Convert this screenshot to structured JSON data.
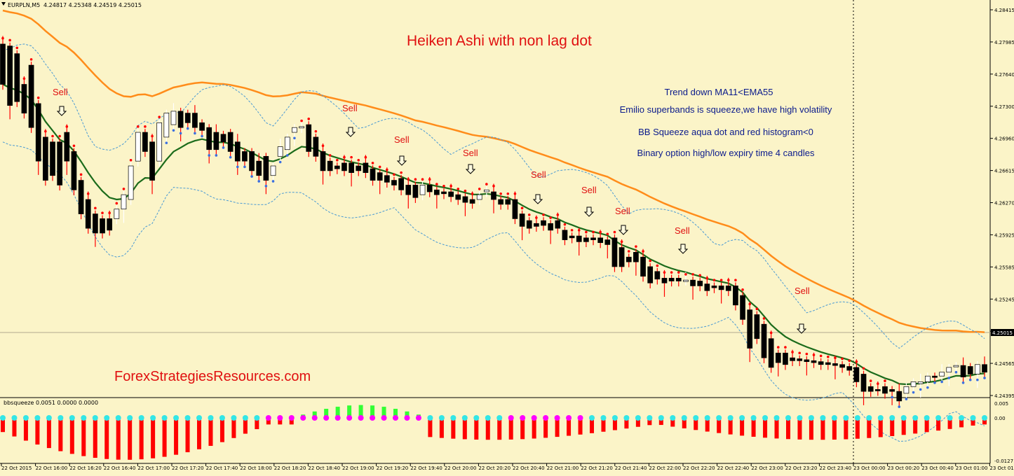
{
  "header": {
    "symbol_label": "EURPLN,M5",
    "ohlc": "4.24817 4.25348 4.24519 4.25015"
  },
  "annotations": {
    "title": "Heiken Ashi with non lag dot",
    "info_lines": [
      "Trend down MA11<EMA55",
      "Emilio superbands is squeeze,we have high volatility",
      "BB Squeeze aqua dot and red histogram<0",
      "Binary option high/low expiry time 4 candles"
    ],
    "website": "ForexStrategiesResources.com",
    "sell_label": "Sell"
  },
  "subwindow": {
    "label": "bbsqueeze 0.0051 0.0000 0.0000"
  },
  "colors": {
    "background": "#fbf4c8",
    "bear_candle": "#000000",
    "bull_candle": "#ffffff",
    "bear_wick": "#ff0000",
    "ema55": "#ff8c1a",
    "ma11": "#1b6b1b",
    "bands": "#4a9ad4",
    "dot_red": "#ff0000",
    "dot_blue": "#3a6fe0",
    "hist_red": "#ff0000",
    "hist_green": "#33ff33",
    "dot_aqua": "#33e6e6",
    "dot_magenta": "#ff00ff",
    "text_red": "#e01010",
    "text_navy": "#0a1a8c"
  },
  "chart_data": [
    {
      "type": "candlestick",
      "name": "EURPLN,M5 Heiken Ashi",
      "ylim": [
        4.2435,
        4.2845
      ],
      "y_ticks": [
        "4.28415",
        "4.27985",
        "4.27640",
        "4.27300",
        "4.26960",
        "4.26615",
        "4.26270",
        "4.25925",
        "4.25585",
        "4.25245",
        "4.24905",
        "4.24565",
        "4.24395"
      ],
      "current_price": "4.25015",
      "x_ticks": [
        "22 Oct 2015",
        "22 Oct 16:00",
        "22 Oct 16:20",
        "22 Oct 16:40",
        "22 Oct 17:00",
        "22 Oct 17:20",
        "22 Oct 17:40",
        "22 Oct 18:00",
        "22 Oct 18:20",
        "22 Oct 18:40",
        "22 Oct 19:00",
        "22 Oct 19:20",
        "22 Oct 19:40",
        "22 Oct 20:00",
        "22 Oct 20:20",
        "22 Oct 20:40",
        "22 Oct 21:00",
        "22 Oct 21:20",
        "22 Oct 21:40",
        "22 Oct 22:00",
        "22 Oct 22:20",
        "22 Oct 22:40",
        "22 Oct 23:00",
        "22 Oct 23:20",
        "22 Oct 23:40",
        "23 Oct 00:00",
        "23 Oct 00:20",
        "23 Oct 00:40",
        "23 Oct 01:00",
        "23 Oct 01:2"
      ],
      "candles": [
        [
          4.2802,
          4.276
        ],
        [
          4.28,
          4.2738
        ],
        [
          4.2792,
          4.2742
        ],
        [
          4.276,
          4.273
        ],
        [
          4.278,
          4.2715
        ],
        [
          4.274,
          4.268
        ],
        [
          4.2705,
          4.266
        ],
        [
          4.27,
          4.2665
        ],
        [
          4.27,
          4.2655
        ],
        [
          4.271,
          4.268
        ],
        [
          4.269,
          4.265
        ],
        [
          4.266,
          4.2625
        ],
        [
          4.264,
          4.261
        ],
        [
          4.2625,
          4.2605
        ],
        [
          4.262,
          4.2605
        ],
        [
          4.262,
          4.2608
        ],
        [
          4.262,
          4.263
        ],
        [
          4.263,
          4.2645
        ],
        [
          4.264,
          4.2675
        ],
        [
          4.268,
          4.271
        ],
        [
          4.271,
          4.269
        ],
        [
          4.27,
          4.266
        ],
        [
          4.268,
          4.272
        ],
        [
          4.2705,
          4.273
        ],
        [
          4.2718,
          4.2732
        ],
        [
          4.2732,
          4.2715
        ],
        [
          4.273,
          4.272
        ],
        [
          4.273,
          4.2715
        ],
        [
          4.272,
          4.2712
        ],
        [
          4.2715,
          4.2692
        ],
        [
          4.271,
          4.2692
        ],
        [
          4.2708,
          4.27
        ],
        [
          4.271,
          4.269
        ],
        [
          4.27,
          4.268
        ],
        [
          4.269,
          4.268
        ],
        [
          4.269,
          4.267
        ],
        [
          4.268,
          4.2665
        ],
        [
          4.2685,
          4.266
        ],
        [
          4.2665,
          4.2675
        ],
        [
          4.2685,
          4.2695
        ],
        [
          4.2692,
          4.2705
        ],
        [
          4.271,
          4.2715
        ],
        [
          4.2715,
          4.2716
        ],
        [
          4.2718,
          4.269
        ],
        [
          4.2705,
          4.2685
        ],
        [
          4.269,
          4.267
        ],
        [
          4.268,
          4.267
        ],
        [
          4.2675,
          4.2672
        ],
        [
          4.2678,
          4.267
        ],
        [
          4.2678,
          4.2668
        ],
        [
          4.2675,
          4.267
        ],
        [
          4.2678,
          4.2668
        ],
        [
          4.2672,
          4.266
        ],
        [
          4.2668,
          4.266
        ],
        [
          4.2665,
          4.2658
        ],
        [
          4.266,
          4.2655
        ],
        [
          4.2662,
          4.265
        ],
        [
          4.2655,
          4.2645
        ],
        [
          4.2655,
          4.2642
        ],
        [
          4.2645,
          4.2655
        ],
        [
          4.2655,
          4.2648
        ],
        [
          4.265,
          4.2645
        ],
        [
          4.2648,
          4.2646
        ],
        [
          4.2648,
          4.2643
        ],
        [
          4.2645,
          4.264
        ],
        [
          4.2643,
          4.2637
        ],
        [
          4.264,
          4.2636
        ],
        [
          4.264,
          4.2645
        ],
        [
          4.2648,
          4.265
        ],
        [
          4.2648,
          4.264
        ],
        [
          4.264,
          4.2635
        ],
        [
          4.264,
          4.2635
        ],
        [
          4.264,
          4.262
        ],
        [
          4.2625,
          4.2612
        ],
        [
          4.2618,
          4.261
        ],
        [
          4.2615,
          4.2612
        ],
        [
          4.2618,
          4.2613
        ],
        [
          4.2615,
          4.2608
        ],
        [
          4.2618,
          4.261
        ],
        [
          4.2608,
          4.2598
        ],
        [
          4.2602,
          4.26
        ],
        [
          4.2602,
          4.2596
        ],
        [
          4.26,
          4.2596
        ],
        [
          4.26,
          4.2598
        ],
        [
          4.26,
          4.2595
        ],
        [
          4.2598,
          4.2593
        ],
        [
          4.26,
          4.257
        ],
        [
          4.259,
          4.257
        ],
        [
          4.258,
          4.2575
        ],
        [
          4.2585,
          4.2575
        ],
        [
          4.258,
          4.256
        ],
        [
          4.257,
          4.2553
        ],
        [
          4.2565,
          4.2557
        ],
        [
          4.2558,
          4.2553
        ],
        [
          4.2558,
          4.2555
        ],
        [
          4.2558,
          4.2555
        ],
        [
          4.2556,
          4.2556
        ],
        [
          4.2556,
          4.255
        ],
        [
          4.2555,
          4.255
        ],
        [
          4.2552,
          4.2545
        ],
        [
          4.255,
          4.2548
        ],
        [
          4.255,
          4.2546
        ],
        [
          4.255,
          4.2545
        ],
        [
          4.255,
          4.253
        ],
        [
          4.254,
          4.2515
        ],
        [
          4.2525,
          4.2485
        ],
        [
          4.252,
          4.2495
        ],
        [
          4.251,
          4.2475
        ],
        [
          4.2495,
          4.2465
        ],
        [
          4.248,
          4.247
        ],
        [
          4.248,
          4.2468
        ],
        [
          4.2475,
          4.2472
        ],
        [
          4.2474,
          4.2472
        ],
        [
          4.2473,
          4.2471
        ],
        [
          4.2472,
          4.247
        ],
        [
          4.2471,
          4.2468
        ],
        [
          4.247,
          4.2468
        ],
        [
          4.2469,
          4.2467
        ],
        [
          4.2468,
          4.2465
        ],
        [
          4.2466,
          4.2462
        ],
        [
          4.2465,
          4.245
        ],
        [
          4.2458,
          4.244
        ],
        [
          4.2445,
          4.244
        ],
        [
          4.2442,
          4.2441
        ],
        [
          4.2445,
          4.2438
        ],
        [
          4.2442,
          4.244
        ],
        [
          4.244,
          4.243
        ],
        [
          4.2438,
          4.2445
        ],
        [
          4.2445,
          4.245
        ],
        [
          4.2448,
          4.245
        ],
        [
          4.245,
          4.2456
        ],
        [
          4.2456,
          4.2455
        ],
        [
          4.2456,
          4.246
        ],
        [
          4.246,
          4.2465
        ],
        [
          4.2466,
          4.2467
        ],
        [
          4.2467,
          4.2455
        ],
        [
          4.2466,
          4.2458
        ],
        [
          4.2458,
          4.2468
        ],
        [
          4.2468,
          4.246
        ]
      ]
    },
    {
      "type": "histogram",
      "name": "bbsqueeze",
      "y_ticks": [
        "0.005",
        "0.00",
        "-0.0127"
      ],
      "ylim": [
        -0.0127,
        0.005
      ]
    }
  ]
}
